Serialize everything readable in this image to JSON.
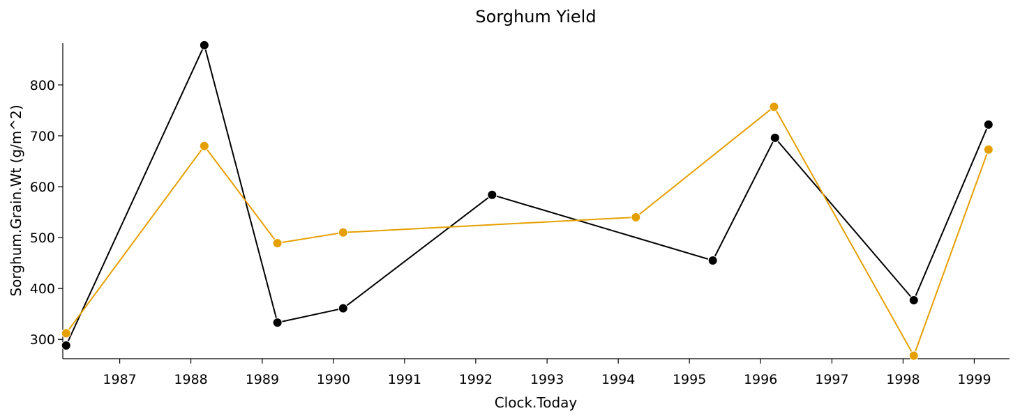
{
  "chart_data": {
    "type": "line",
    "title": "Sorghum Yield",
    "xlabel": "Clock.Today",
    "ylabel": "Sorghum.Grain.Wt (g/m^2)",
    "x_type": "date",
    "xlim": [
      "1986-03-15",
      "1999-07-01"
    ],
    "ylim": [
      262,
      882
    ],
    "x_ticks": [
      "1987-01-01",
      "1988-01-01",
      "1989-01-01",
      "1990-01-01",
      "1991-01-01",
      "1992-01-01",
      "1993-01-01",
      "1994-01-01",
      "1995-01-01",
      "1996-01-01",
      "1997-01-01",
      "1998-01-01",
      "1999-01-01"
    ],
    "x_tick_labels": [
      "1987",
      "1988",
      "1989",
      "1990",
      "1991",
      "1992",
      "1993",
      "1994",
      "1995",
      "1996",
      "1997",
      "1998",
      "1999"
    ],
    "y_ticks": [
      300,
      400,
      500,
      600,
      700,
      800
    ],
    "grid": false,
    "series": [
      {
        "color": "#000000",
        "marker": "circle",
        "points": [
          {
            "x": "1986-04-01",
            "y": 288
          },
          {
            "x": "1988-03-10",
            "y": 878
          },
          {
            "x": "1989-03-20",
            "y": 333
          },
          {
            "x": "1990-02-20",
            "y": 361
          },
          {
            "x": "1992-03-25",
            "y": 584
          },
          {
            "x": "1995-05-01",
            "y": 455
          },
          {
            "x": "1996-03-15",
            "y": 696
          },
          {
            "x": "1998-02-25",
            "y": 377
          },
          {
            "x": "1999-03-15",
            "y": 722
          }
        ]
      },
      {
        "color": "#E69F00",
        "marker": "circle",
        "points": [
          {
            "x": "1986-04-01",
            "y": 312
          },
          {
            "x": "1988-03-10",
            "y": 680
          },
          {
            "x": "1989-03-20",
            "y": 489
          },
          {
            "x": "1990-02-20",
            "y": 510
          },
          {
            "x": "1994-04-01",
            "y": 540
          },
          {
            "x": "1996-03-10",
            "y": 757
          },
          {
            "x": "1998-02-25",
            "y": 268
          },
          {
            "x": "1999-03-15",
            "y": 673
          }
        ]
      }
    ]
  }
}
